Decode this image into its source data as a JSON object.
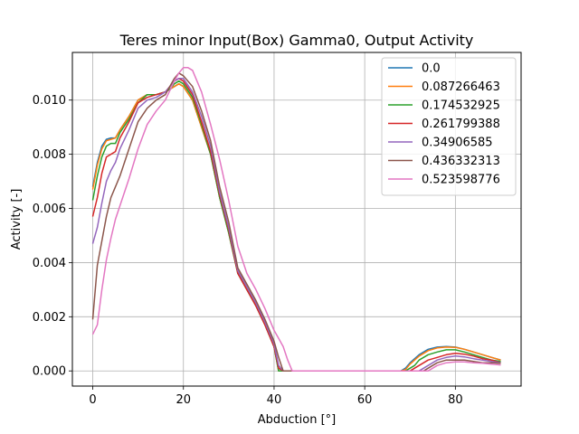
{
  "chart_data": {
    "type": "line",
    "title": "Teres minor Input(Box) Gamma0, Output Activity",
    "xlabel": "Abduction [°]",
    "ylabel": "Activity [-]",
    "xlim": [
      -4.5,
      94.5
    ],
    "ylim": [
      -0.00056,
      0.01176
    ],
    "xticks": [
      0,
      20,
      40,
      60,
      80
    ],
    "yticks": [
      0.0,
      0.002,
      0.004,
      0.006,
      0.008,
      0.01
    ],
    "xtick_labels": [
      "0",
      "20",
      "40",
      "60",
      "80"
    ],
    "ytick_labels": [
      "0.000",
      "0.002",
      "0.004",
      "0.006",
      "0.008",
      "0.010"
    ],
    "grid": true,
    "legend_position": "top-right",
    "colors": [
      "#1f77b4",
      "#ff7f0e",
      "#2ca02c",
      "#d62728",
      "#9467bd",
      "#8c564b",
      "#e377c2"
    ],
    "series": [
      {
        "name": "0.0",
        "x": [
          0,
          1,
          2,
          3,
          4,
          5,
          6,
          8,
          10,
          12,
          14,
          16,
          17,
          18,
          19,
          20,
          22,
          24,
          26,
          28,
          30,
          32,
          34,
          36,
          38,
          40,
          41,
          42,
          44,
          50,
          60,
          68,
          69,
          70,
          72,
          74,
          76,
          78,
          80,
          82,
          84,
          86,
          88,
          90
        ],
        "values": [
          0.0068,
          0.0077,
          0.0083,
          0.00855,
          0.0086,
          0.0086,
          0.0089,
          0.0094,
          0.01,
          0.0102,
          0.0102,
          0.0103,
          0.0104,
          0.0105,
          0.0106,
          0.0105,
          0.01,
          0.009,
          0.008,
          0.0064,
          0.0051,
          0.0036,
          0.003,
          0.0024,
          0.0017,
          0.0009,
          0.0,
          0.0,
          0.0,
          0.0,
          0.0,
          0.0,
          0.0001,
          0.0003,
          0.0006,
          0.0008,
          0.00088,
          0.0009,
          0.00088,
          0.0008,
          0.0007,
          0.0006,
          0.0005,
          0.0004
        ]
      },
      {
        "name": "0.087266463",
        "x": [
          0,
          1,
          2,
          3,
          4,
          5,
          6,
          8,
          10,
          12,
          14,
          16,
          17,
          18,
          19,
          20,
          22,
          24,
          26,
          28,
          30,
          32,
          34,
          36,
          38,
          40,
          41,
          42,
          44,
          50,
          60,
          68,
          69,
          70,
          72,
          74,
          76,
          78,
          80,
          82,
          84,
          86,
          88,
          90
        ],
        "values": [
          0.0067,
          0.0076,
          0.0082,
          0.0085,
          0.00855,
          0.0086,
          0.0089,
          0.0094,
          0.01,
          0.0102,
          0.0102,
          0.0103,
          0.0104,
          0.0105,
          0.0106,
          0.0105,
          0.01,
          0.009,
          0.008,
          0.0064,
          0.0051,
          0.0036,
          0.003,
          0.0024,
          0.0017,
          0.0009,
          0.0,
          0.0,
          0.0,
          0.0,
          0.0,
          0.0,
          5e-05,
          0.00025,
          0.00055,
          0.00075,
          0.00085,
          0.00088,
          0.00087,
          0.0008,
          0.0007,
          0.0006,
          0.0005,
          0.0004
        ]
      },
      {
        "name": "0.174532925",
        "x": [
          0,
          1,
          2,
          3,
          4,
          5,
          6,
          8,
          10,
          12,
          14,
          16,
          17,
          18,
          19,
          20,
          22,
          24,
          26,
          28,
          30,
          32,
          34,
          36,
          38,
          40,
          41,
          42,
          44,
          50,
          60,
          69,
          70,
          71,
          72,
          74,
          76,
          78,
          80,
          82,
          84,
          86,
          88,
          90
        ],
        "values": [
          0.0063,
          0.0072,
          0.0079,
          0.0083,
          0.0084,
          0.0084,
          0.0088,
          0.0093,
          0.0099,
          0.0102,
          0.0102,
          0.0103,
          0.0104,
          0.0106,
          0.0107,
          0.0106,
          0.0101,
          0.0091,
          0.008,
          0.0064,
          0.0051,
          0.0036,
          0.003,
          0.0024,
          0.0017,
          0.0009,
          0.0,
          0.0,
          0.0,
          0.0,
          0.0,
          0.0,
          0.0001,
          0.0002,
          0.0004,
          0.0006,
          0.0007,
          0.00078,
          0.00078,
          0.0007,
          0.0006,
          0.0005,
          0.0004,
          0.00035
        ]
      },
      {
        "name": "0.261799388",
        "x": [
          0,
          1,
          2,
          3,
          4,
          5,
          6,
          8,
          10,
          12,
          14,
          16,
          17,
          18,
          19,
          20,
          22,
          24,
          26,
          28,
          30,
          32,
          34,
          36,
          38,
          40,
          41,
          42,
          44,
          50,
          60,
          70,
          71,
          72,
          74,
          76,
          78,
          80,
          82,
          84,
          86,
          88,
          90
        ],
        "values": [
          0.0057,
          0.0064,
          0.0073,
          0.0079,
          0.008,
          0.0081,
          0.0086,
          0.0092,
          0.0099,
          0.0101,
          0.0102,
          0.0103,
          0.0105,
          0.0107,
          0.0108,
          0.0107,
          0.0102,
          0.0092,
          0.0081,
          0.0065,
          0.0052,
          0.0036,
          0.003,
          0.0024,
          0.0017,
          0.0009,
          0.0001,
          0.0,
          0.0,
          0.0,
          0.0,
          0.0,
          0.0001,
          0.0002,
          0.0004,
          0.0005,
          0.0006,
          0.00065,
          0.00062,
          0.00055,
          0.00045,
          0.0004,
          0.0003
        ]
      },
      {
        "name": "0.34906585",
        "x": [
          0,
          1,
          2,
          3,
          4,
          5,
          6,
          8,
          10,
          12,
          14,
          16,
          17,
          18,
          19,
          20,
          22,
          24,
          26,
          28,
          30,
          32,
          34,
          36,
          38,
          40,
          41,
          42,
          44,
          50,
          60,
          72,
          73,
          74,
          76,
          78,
          80,
          82,
          84,
          86,
          88,
          90
        ],
        "values": [
          0.0047,
          0.0053,
          0.0062,
          0.007,
          0.0074,
          0.0077,
          0.0082,
          0.0089,
          0.0097,
          0.01,
          0.0101,
          0.0103,
          0.0105,
          0.0107,
          0.0108,
          0.0108,
          0.0103,
          0.0094,
          0.0083,
          0.0066,
          0.0053,
          0.0037,
          0.0031,
          0.0025,
          0.0018,
          0.001,
          0.0002,
          0.0,
          0.0,
          0.0,
          0.0,
          0.0,
          0.0001,
          0.0002,
          0.0004,
          0.0005,
          0.00055,
          0.00052,
          0.00045,
          0.0004,
          0.00035,
          0.0003
        ]
      },
      {
        "name": "0.436332313",
        "x": [
          0,
          1,
          2,
          3,
          4,
          5,
          6,
          8,
          10,
          12,
          14,
          16,
          17,
          18,
          19,
          20,
          22,
          24,
          26,
          28,
          30,
          32,
          34,
          36,
          38,
          40,
          41,
          42,
          43,
          44,
          50,
          60,
          73,
          74,
          75,
          76,
          78,
          80,
          82,
          84,
          86,
          88,
          90
        ],
        "values": [
          0.0019,
          0.0039,
          0.0048,
          0.0057,
          0.0064,
          0.0068,
          0.0072,
          0.0082,
          0.0092,
          0.0097,
          0.01,
          0.0102,
          0.0105,
          0.0108,
          0.011,
          0.0109,
          0.0105,
          0.0096,
          0.0085,
          0.0068,
          0.0055,
          0.0038,
          0.0032,
          0.0026,
          0.0019,
          0.0011,
          0.0005,
          0.0,
          0.0,
          0.0,
          0.0,
          0.0,
          0.0,
          0.0001,
          0.0002,
          0.0003,
          0.0004,
          0.0004,
          0.0004,
          0.00035,
          0.0003,
          0.0003,
          0.00028
        ]
      },
      {
        "name": "0.523598776",
        "x": [
          0,
          1,
          2,
          3,
          4,
          5,
          6,
          8,
          10,
          12,
          14,
          16,
          18,
          19,
          20,
          21,
          22,
          24,
          26,
          28,
          30,
          32,
          34,
          36,
          38,
          40,
          41,
          42,
          43,
          44,
          50,
          60,
          74,
          75,
          76,
          77,
          78,
          80,
          82,
          84,
          86,
          88,
          90
        ],
        "values": [
          0.00135,
          0.0017,
          0.003,
          0.0041,
          0.0049,
          0.0056,
          0.0061,
          0.0071,
          0.0082,
          0.0091,
          0.0096,
          0.01,
          0.0107,
          0.011,
          0.0112,
          0.0112,
          0.0111,
          0.0103,
          0.0091,
          0.0078,
          0.0063,
          0.0046,
          0.0036,
          0.003,
          0.0023,
          0.0015,
          0.0012,
          0.0009,
          0.0004,
          0.0,
          0.0,
          0.0,
          0.0,
          0.0001,
          0.0002,
          0.00025,
          0.0003,
          0.00033,
          0.00033,
          0.0003,
          0.00028,
          0.00025,
          0.00022
        ]
      }
    ]
  }
}
